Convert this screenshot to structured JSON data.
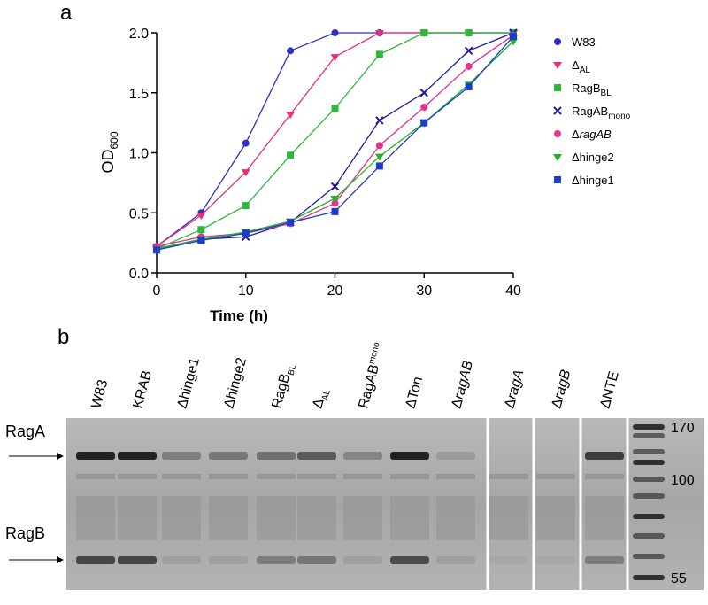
{
  "chart_data": {
    "type": "line",
    "panel_label": "a",
    "x_label": "Time (h)",
    "y_label": "OD",
    "y_label_sub": "600",
    "x": [
      0,
      5,
      10,
      15,
      20,
      25,
      30,
      35,
      40
    ],
    "xlim": [
      0,
      40
    ],
    "xticks": [
      0,
      10,
      20,
      30,
      40
    ],
    "ylim": [
      0,
      2
    ],
    "yticks": [
      {
        "value": 0,
        "label": "0.0"
      },
      0.5,
      {
        "value": 1,
        "label": "1.0"
      },
      1.5,
      {
        "value": 2,
        "label": "2.0"
      }
    ],
    "series": [
      {
        "name": "W83",
        "color": "#2f2fc8",
        "marker": "circle",
        "values": [
          0.22,
          0.5,
          1.08,
          1.85,
          2.0,
          2.0,
          2.0,
          2.0,
          2.0
        ]
      },
      {
        "name": "Δ",
        "subscript": "AL",
        "color": "#e8307a",
        "marker": "triangle-down",
        "values": [
          0.22,
          0.48,
          0.84,
          1.32,
          1.8,
          2.0,
          2.0,
          2.0,
          2.0
        ]
      },
      {
        "name": "RagB",
        "subscript": "BL",
        "color": "#2db83a",
        "marker": "square",
        "values": [
          0.2,
          0.36,
          0.56,
          0.98,
          1.37,
          1.82,
          2.0,
          2.0,
          2.0
        ]
      },
      {
        "name": "RagAB",
        "subscript": "mono",
        "color": "#1c1ca0",
        "marker": "x",
        "values": [
          0.2,
          0.28,
          0.3,
          0.42,
          0.72,
          1.27,
          1.5,
          1.85,
          2.0
        ]
      },
      {
        "name": "Δ",
        "italic": "ragAB",
        "color": "#e8308c",
        "marker": "circle",
        "values": [
          0.22,
          0.3,
          0.33,
          0.41,
          0.58,
          1.06,
          1.38,
          1.72,
          1.98
        ]
      },
      {
        "name": "Δhinge2",
        "color": "#22b422",
        "marker": "triangle-down",
        "values": [
          0.2,
          0.28,
          0.34,
          0.43,
          0.62,
          0.97,
          1.25,
          1.57,
          1.93
        ]
      },
      {
        "name": "Δhinge1",
        "color": "#1c3cd0",
        "marker": "square",
        "values": [
          0.19,
          0.27,
          0.33,
          0.42,
          0.51,
          0.89,
          1.25,
          1.55,
          1.97
        ]
      }
    ]
  },
  "gel": {
    "panel_label": "b",
    "lanes": [
      {
        "name": "W83"
      },
      {
        "name": "KRAB"
      },
      {
        "name": "Δhinge1"
      },
      {
        "name": "Δhinge2"
      },
      {
        "name": "RagB",
        "subscript": "BL"
      },
      {
        "name": "Δ",
        "subscript": "AL"
      },
      {
        "name": "RagAB",
        "superscript": "mono"
      },
      {
        "name": "ΔTon"
      },
      {
        "name": "Δ",
        "italic": "ragAB"
      },
      {
        "name": "Δ",
        "italic": "ragA"
      },
      {
        "name": "Δ",
        "italic": "ragB"
      },
      {
        "name": "ΔNTE"
      }
    ],
    "bands": [
      "RagA",
      "RagB"
    ],
    "size_markers": [
      170,
      100,
      55
    ]
  }
}
